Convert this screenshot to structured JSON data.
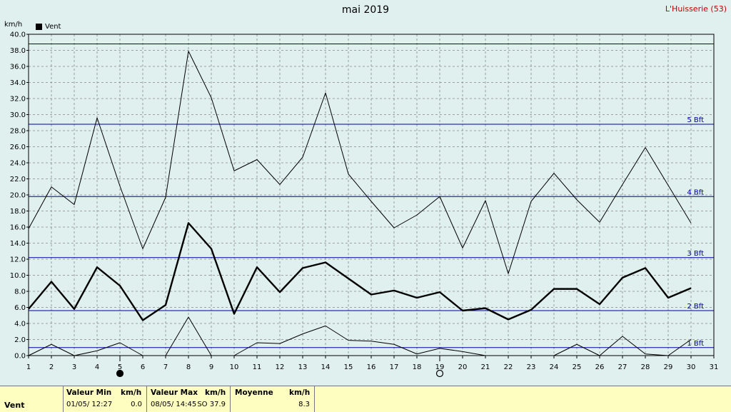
{
  "header": {
    "title": "mai 2019",
    "station": "L'Huisserie (53)",
    "unit": "km/h",
    "legend": "Vent"
  },
  "chart_data": {
    "type": "line",
    "x": [
      1,
      2,
      3,
      4,
      5,
      6,
      7,
      8,
      9,
      10,
      11,
      12,
      13,
      14,
      15,
      16,
      17,
      18,
      19,
      20,
      21,
      22,
      23,
      24,
      25,
      26,
      27,
      28,
      29,
      30
    ],
    "xlim": [
      1,
      31
    ],
    "ylim": [
      0,
      40
    ],
    "yticks": [
      "0.0",
      "2.0",
      "4.0",
      "6.0",
      "8.0",
      "10.0",
      "12.0",
      "14.0",
      "16.0",
      "18.0",
      "20.0",
      "22.0",
      "24.0",
      "26.0",
      "28.0",
      "30.0",
      "32.0",
      "34.0",
      "36.0",
      "38.0",
      "40.0"
    ],
    "xticks": [
      "1",
      "2",
      "3",
      "4",
      "5",
      "6",
      "7",
      "8",
      "9",
      "10",
      "11",
      "12",
      "13",
      "14",
      "15",
      "16",
      "17",
      "18",
      "19",
      "20",
      "21",
      "22",
      "23",
      "24",
      "25",
      "26",
      "27",
      "28",
      "29",
      "30",
      "31"
    ],
    "grid": true,
    "series": [
      {
        "values": [
          15.8,
          21.0,
          18.8,
          29.6,
          21.1,
          13.3,
          19.7,
          37.9,
          32.1,
          23.0,
          24.4,
          21.3,
          24.7,
          32.7,
          22.6,
          19.2,
          15.9,
          17.5,
          19.8,
          13.4,
          19.3,
          10.2,
          19.2,
          22.7,
          19.4,
          16.6,
          21.3,
          25.9,
          21.2,
          16.5
        ],
        "style": "thin"
      },
      {
        "values": [
          5.8,
          9.2,
          5.8,
          11.0,
          8.7,
          4.4,
          6.3,
          16.5,
          13.3,
          5.2,
          11.0,
          7.9,
          10.9,
          11.6,
          9.6,
          7.6,
          8.1,
          7.2,
          7.9,
          5.6,
          5.9,
          4.5,
          5.7,
          8.3,
          8.3,
          6.4,
          9.7,
          10.9,
          7.2,
          8.4
        ],
        "style": "bold"
      },
      {
        "values": [
          0.0,
          1.4,
          0.0,
          0.6,
          1.6,
          0.0,
          0.0,
          4.8,
          0.0,
          0.0,
          1.6,
          1.5,
          2.7,
          3.7,
          1.9,
          1.8,
          1.4,
          0.2,
          0.9,
          0.5,
          0.0,
          null,
          null,
          0.0,
          1.4,
          0.0,
          2.4,
          0.2,
          0.0,
          2.0
        ],
        "style": "thin"
      }
    ],
    "beaufort": [
      {
        "value": 1.0,
        "label": "1 Bft"
      },
      {
        "value": 5.6,
        "label": "2 Bft"
      },
      {
        "value": 12.2,
        "label": "3 Bft"
      },
      {
        "value": 19.8,
        "label": "4 Bft"
      },
      {
        "value": 28.8,
        "label": "5 Bft"
      },
      {
        "value": 38.8,
        "label": ""
      }
    ],
    "moon_markers": [
      {
        "day": 5,
        "phase": "new-moon"
      },
      {
        "day": 19,
        "phase": "full-moon"
      }
    ]
  },
  "footer": {
    "series_name": "Vent",
    "min_label": "Valeur Min",
    "min_unit": "km/h",
    "min_date": "01/05/  12:27",
    "min_value": "0.0",
    "max_label": "Valeur Max",
    "max_unit": "km/h",
    "max_date": "08/05/  14:45",
    "max_value": "SO  37.9",
    "avg_label": "Moyenne",
    "avg_unit": "km/h",
    "avg_value": "8.3"
  },
  "colors": {
    "background": "#dff0ef",
    "grid": "#888888",
    "beaufort_line": "#00009c",
    "station": "#c00000",
    "footer": "#fefec0"
  }
}
